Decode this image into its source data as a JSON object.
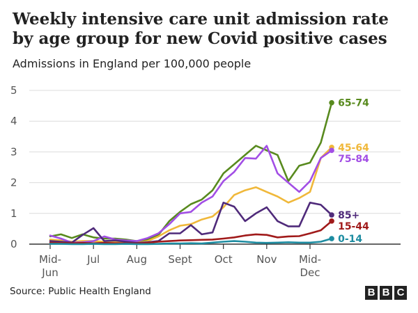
{
  "title": "Weekly intensive care unit admission rate by age group for new Covid positive cases",
  "subtitle": "Admissions in England per 100,000 people",
  "source": "Source: Public Health England",
  "logo": [
    "B",
    "B",
    "C"
  ],
  "chart_data": {
    "type": "line",
    "ylim": [
      0,
      5
    ],
    "y_ticks": [
      0,
      1,
      2,
      3,
      4,
      5
    ],
    "grid": true,
    "x_ticks": [
      {
        "x": 0,
        "lines": [
          "Mid-",
          "Jun"
        ]
      },
      {
        "x": 2,
        "lines": [
          "Jul"
        ]
      },
      {
        "x": 4,
        "lines": [
          "Aug"
        ]
      },
      {
        "x": 6,
        "lines": [
          "Sept"
        ]
      },
      {
        "x": 8,
        "lines": [
          "Oct"
        ]
      },
      {
        "x": 10,
        "lines": [
          "Nov"
        ]
      },
      {
        "x": 12,
        "lines": [
          "Mid-",
          "Dec"
        ]
      }
    ],
    "series": [
      {
        "name": "65-74",
        "color": "#588a1e",
        "x": [
          0,
          0.5,
          1,
          1.5,
          2,
          2.5,
          3,
          3.5,
          4,
          4.5,
          5,
          5.5,
          6,
          6.5,
          7,
          7.5,
          8,
          8.5,
          9,
          9.5,
          10,
          10.5,
          11,
          11.5,
          12,
          12.5,
          13
        ],
        "values": [
          0.25,
          0.32,
          0.2,
          0.32,
          0.22,
          0.18,
          0.18,
          0.15,
          0.1,
          0.15,
          0.3,
          0.75,
          1.05,
          1.3,
          1.45,
          1.75,
          2.3,
          2.6,
          2.9,
          3.2,
          3.05,
          2.9,
          2.05,
          2.55,
          2.65,
          3.3,
          4.6
        ]
      },
      {
        "name": "45-64",
        "color": "#f0b83a",
        "x": [
          0,
          0.5,
          1,
          1.5,
          2,
          2.5,
          3,
          3.5,
          4,
          4.5,
          5,
          5.5,
          6,
          6.5,
          7,
          7.5,
          8,
          8.5,
          9,
          9.5,
          10,
          10.5,
          11,
          11.5,
          12,
          12.5,
          13
        ],
        "values": [
          0.15,
          0.12,
          0.08,
          0.1,
          0.1,
          0.08,
          0.06,
          0.06,
          0.05,
          0.1,
          0.25,
          0.45,
          0.6,
          0.65,
          0.8,
          0.9,
          1.2,
          1.6,
          1.75,
          1.85,
          1.7,
          1.55,
          1.35,
          1.5,
          1.7,
          2.8,
          3.15
        ]
      },
      {
        "name": "75-84",
        "color": "#a24ee5",
        "x": [
          0,
          0.5,
          1,
          1.5,
          2,
          2.5,
          3,
          3.5,
          4,
          4.5,
          5,
          5.5,
          6,
          6.5,
          7,
          7.5,
          8,
          8.5,
          9,
          9.5,
          10,
          10.5,
          11,
          11.5,
          12,
          12.5,
          13
        ],
        "values": [
          0.28,
          0.18,
          0.05,
          0.06,
          0.1,
          0.25,
          0.15,
          0.12,
          0.1,
          0.2,
          0.35,
          0.65,
          1.0,
          1.05,
          1.35,
          1.55,
          2.05,
          2.35,
          2.8,
          2.78,
          3.2,
          2.3,
          2.0,
          1.7,
          2.05,
          2.8,
          3.05
        ]
      },
      {
        "name": "85+",
        "color": "#4f2a7a",
        "x": [
          0,
          0.5,
          1,
          1.5,
          2,
          2.5,
          3,
          3.5,
          4,
          4.5,
          5,
          5.5,
          6,
          6.5,
          7,
          7.5,
          8,
          8.5,
          9,
          9.5,
          10,
          10.5,
          11,
          11.5,
          12,
          12.5,
          13
        ],
        "values": [
          0.1,
          0.08,
          0.05,
          0.3,
          0.52,
          0.1,
          0.12,
          0.08,
          0.04,
          0.06,
          0.1,
          0.35,
          0.35,
          0.62,
          0.32,
          0.38,
          1.35,
          1.22,
          0.75,
          1.0,
          1.2,
          0.75,
          0.58,
          0.58,
          1.35,
          1.28,
          0.95
        ]
      },
      {
        "name": "15-44",
        "color": "#a01a1a",
        "x": [
          0,
          0.5,
          1,
          1.5,
          2,
          2.5,
          3,
          3.5,
          4,
          4.5,
          5,
          5.5,
          6,
          6.5,
          7,
          7.5,
          8,
          8.5,
          9,
          9.5,
          10,
          10.5,
          11,
          11.5,
          12,
          12.5,
          13
        ],
        "values": [
          0.05,
          0.04,
          0.03,
          0.04,
          0.03,
          0.04,
          0.03,
          0.03,
          0.02,
          0.04,
          0.08,
          0.1,
          0.12,
          0.13,
          0.14,
          0.15,
          0.18,
          0.22,
          0.28,
          0.32,
          0.3,
          0.22,
          0.25,
          0.26,
          0.35,
          0.45,
          0.75
        ]
      },
      {
        "name": "0-14",
        "color": "#1d8ca1",
        "x": [
          0,
          0.5,
          1,
          1.5,
          2,
          2.5,
          3,
          3.5,
          4,
          4.5,
          5,
          5.5,
          6,
          6.5,
          7,
          7.5,
          8,
          8.5,
          9,
          9.5,
          10,
          10.5,
          11,
          11.5,
          12,
          12.5,
          13
        ],
        "values": [
          0.01,
          0.01,
          0.0,
          0.0,
          0.01,
          0.0,
          0.0,
          0.01,
          0.0,
          0.0,
          0.01,
          0.02,
          0.02,
          0.03,
          0.02,
          0.05,
          0.08,
          0.1,
          0.08,
          0.05,
          0.04,
          0.05,
          0.06,
          0.05,
          0.05,
          0.08,
          0.18
        ]
      }
    ]
  }
}
